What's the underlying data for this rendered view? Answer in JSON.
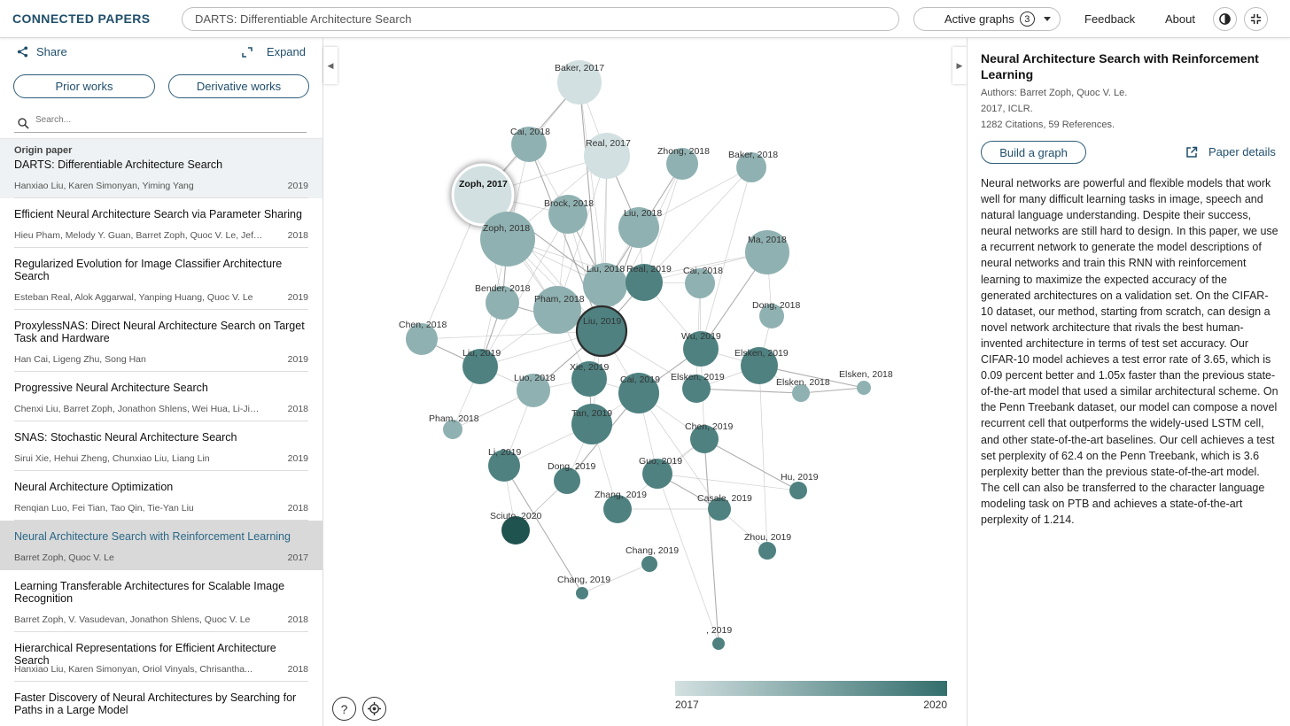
{
  "header": {
    "brand": "CONNECTED PAPERS",
    "search_value": "DARTS: Differentiable Architecture Search",
    "active_graphs_label": "Active graphs",
    "active_graphs_count": "3",
    "feedback": "Feedback",
    "about": "About",
    "icons": [
      "contrast-icon",
      "collapse-icon",
      "chevron-down-icon"
    ]
  },
  "left": {
    "share": "Share",
    "expand": "Expand",
    "prior_works": "Prior works",
    "derivative_works": "Derivative works",
    "search_placeholder": "Search...",
    "origin_label": "Origin paper",
    "papers": [
      {
        "title": "DARTS: Differentiable Architecture Search",
        "authors": "Hanxiao Liu, Karen Simonyan, Yiming Yang",
        "year": "2019"
      },
      {
        "title": "Efficient Neural Architecture Search via Parameter Sharing",
        "authors": "Hieu Pham, Melody Y. Guan, Barret Zoph, Quoc V. Le, Jeff Dean",
        "year": "2018"
      },
      {
        "title": "Regularized Evolution for Image Classifier Architecture Search",
        "authors": "Esteban Real, Alok Aggarwal, Yanping Huang, Quoc V. Le",
        "year": "2019"
      },
      {
        "title": "ProxylessNAS: Direct Neural Architecture Search on Target Task and Hardware",
        "authors": "Han Cai, Ligeng Zhu, Song Han",
        "year": "2019"
      },
      {
        "title": "Progressive Neural Architecture Search",
        "authors": "Chenxi Liu, Barret Zoph, Jonathon Shlens, Wei Hua, Li-Jia Li, L...",
        "year": "2018"
      },
      {
        "title": "SNAS: Stochastic Neural Architecture Search",
        "authors": "Sirui Xie, Hehui Zheng, Chunxiao Liu, Liang Lin",
        "year": "2019"
      },
      {
        "title": "Neural Architecture Optimization",
        "authors": "Renqian Luo, Fei Tian, Tao Qin, Tie-Yan Liu",
        "year": "2018"
      },
      {
        "title": "Neural Architecture Search with Reinforcement Learning",
        "authors": "Barret Zoph, Quoc V. Le",
        "year": "2017"
      },
      {
        "title": "Learning Transferable Architectures for Scalable Image Recognition",
        "authors": "Barret Zoph, V. Vasudevan, Jonathon Shlens, Quoc V. Le",
        "year": "2018"
      },
      {
        "title": "Hierarchical Representations for Efficient Architecture Search",
        "authors": "Hanxiao Liu, Karen Simonyan, Oriol Vinyals, Chrisantha...",
        "year": "2018"
      },
      {
        "title": "Faster Discovery of Neural Architectures by Searching for Paths in a Large Model",
        "authors": "",
        "year": ""
      }
    ]
  },
  "graph": {
    "colors": {
      "light": "#d3e0e1",
      "dark": "#336e6d",
      "darkest": "#1f5350"
    },
    "legend_min": "2017",
    "legend_max": "2020",
    "nodes": [
      {
        "label": "Baker, 2017",
        "year": 2017
      },
      {
        "label": "Cai, 2018",
        "year": 2018
      },
      {
        "label": "Real, 2017",
        "year": 2017
      },
      {
        "label": "Zhong, 2018",
        "year": 2018
      },
      {
        "label": "Baker, 2018",
        "year": 2018
      },
      {
        "label": "Zoph, 2017",
        "year": 2017
      },
      {
        "label": "Brock, 2018",
        "year": 2018
      },
      {
        "label": "Liu, 2018",
        "year": 2018
      },
      {
        "label": "Zoph, 2018",
        "year": 2018
      },
      {
        "label": "Ma, 2018",
        "year": 2018
      },
      {
        "label": "Liu, 2018",
        "year": 2018
      },
      {
        "label": "Real, 2019",
        "year": 2019
      },
      {
        "label": "Cai, 2018",
        "year": 2018
      },
      {
        "label": "Bender, 2018",
        "year": 2018
      },
      {
        "label": "Pham, 2018",
        "year": 2018
      },
      {
        "label": "Dong, 2018",
        "year": 2018
      },
      {
        "label": "Chen, 2018",
        "year": 2018
      },
      {
        "label": "Liu, 2019",
        "year": 2019
      },
      {
        "label": "Wu, 2019",
        "year": 2019
      },
      {
        "label": "Liu, 2019",
        "year": 2019
      },
      {
        "label": "Elsken, 2019",
        "year": 2019
      },
      {
        "label": "Elsken, 2018",
        "year": 2018
      },
      {
        "label": "Luo, 2018",
        "year": 2018
      },
      {
        "label": "Xie, 2019",
        "year": 2019
      },
      {
        "label": "Cai, 2019",
        "year": 2019
      },
      {
        "label": "Elsken, 2019",
        "year": 2019
      },
      {
        "label": "Elsken, 2018",
        "year": 2018
      },
      {
        "label": "Tan, 2019",
        "year": 2019
      },
      {
        "label": "Pham, 2018",
        "year": 2018
      },
      {
        "label": "Chen, 2019",
        "year": 2019
      },
      {
        "label": "Li, 2019",
        "year": 2019
      },
      {
        "label": "Dong, 2019",
        "year": 2019
      },
      {
        "label": "Guo, 2019",
        "year": 2019
      },
      {
        "label": "Hu, 2019",
        "year": 2019
      },
      {
        "label": "Zhang, 2019",
        "year": 2019
      },
      {
        "label": "Casale, 2019",
        "year": 2019
      },
      {
        "label": "Sciuto, 2020",
        "year": 2020
      },
      {
        "label": "Zhou, 2019",
        "year": 2019
      },
      {
        "label": "Chang, 2019",
        "year": 2019
      },
      {
        "label": "Chang, 2019",
        "year": 2019
      },
      {
        "label": ", 2019",
        "year": 2019
      }
    ]
  },
  "right": {
    "title": "Neural Architecture Search with Reinforcement Learning",
    "authors": "Authors: Barret Zoph, Quoc V. Le.",
    "venue": "2017, ICLR.",
    "citations": "1282 Citations, 59 References.",
    "build_graph": "Build a graph",
    "paper_details": "Paper details",
    "abstract": "Neural networks are powerful and flexible models that work well for many difficult learning tasks in image, speech and natural language understanding. Despite their success, neural networks are still hard to design. In this paper, we use a recurrent network to generate the model descriptions of neural networks and train this RNN with reinforcement learning to maximize the expected accuracy of the generated architectures on a validation set. On the CIFAR-10 dataset, our method, starting from scratch, can design a novel network architecture that rivals the best human-invented architecture in terms of test set accuracy. Our CIFAR-10 model achieves a test error rate of 3.65, which is 0.09 percent better and 1.05x faster than the previous state-of-the-art model that used a similar architectural scheme. On the Penn Treebank dataset, our model can compose a novel recurrent cell that outperforms the widely-used LSTM cell, and other state-of-the-art baselines. Our cell achieves a test set perplexity of 62.4 on the Penn Treebank, which is 3.6 perplexity better than the previous state-of-the-art model. The cell can also be transferred to the character language modeling task on PTB and achieves a state-of-the-art perplexity of 1.214."
  }
}
